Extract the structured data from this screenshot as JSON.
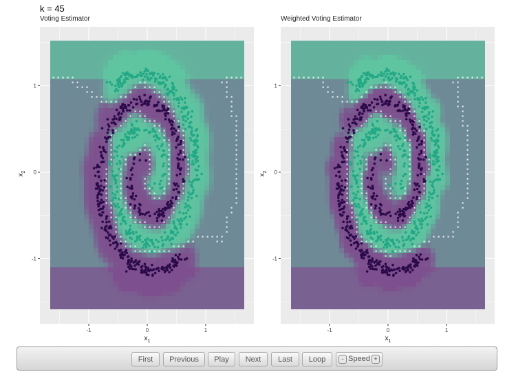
{
  "figure": {
    "title": "k = 45"
  },
  "colors": {
    "panel_bg": "#ebebeb",
    "grid": "#ffffff",
    "class0_point": "#2b0a4a",
    "class1_point": "#22a884",
    "region_class1": "#5fc4a0",
    "region_class0": "#7e4f8e",
    "boundary": "#ffffff"
  },
  "chart_data": [
    {
      "type": "scatter",
      "title": "Voting Estimator",
      "xlabel": "x1",
      "ylabel": "x2",
      "xlim": [
        -1.5,
        1.5
      ],
      "ylim": [
        -1.6,
        1.5
      ],
      "x_ticks": [
        -1,
        0,
        1
      ],
      "x_tick_labels": [
        "-1",
        "0",
        "1"
      ],
      "y_ticks": [
        -1,
        0,
        1
      ],
      "y_tick_labels": [
        "-1",
        "0",
        "1"
      ],
      "grid": true,
      "legend": "none",
      "series": [
        {
          "spiral_arm": "dark purple",
          "color": "#2b0a4a",
          "n_points": 450,
          "description": "spiral starting near (0.3, 0.2) turning outward to x~1.0"
        },
        {
          "spiral_arm": "teal",
          "color": "#22a884",
          "n_points": 450,
          "description": "interleaved spiral starting near (-0.3, -0.2) turning outward"
        }
      ],
      "background": "smoothed class-probability surface with white decision contour"
    },
    {
      "type": "scatter",
      "title": "Weighted Voting Estimator",
      "xlabel": "x1",
      "ylabel": "x2",
      "xlim": [
        -1.5,
        1.5
      ],
      "ylim": [
        -1.6,
        1.5
      ],
      "x_ticks": [
        -1,
        0,
        1
      ],
      "x_tick_labels": [
        "-1",
        "0",
        "1"
      ],
      "y_ticks": [
        -1,
        0,
        1
      ],
      "y_tick_labels": [
        "-1",
        "0",
        "1"
      ],
      "grid": true,
      "legend": "none",
      "series": [
        {
          "spiral_arm": "dark purple",
          "color": "#2b0a4a",
          "n_points": 450
        },
        {
          "spiral_arm": "teal",
          "color": "#22a884",
          "n_points": 450
        }
      ],
      "background": "sharper class-probability surface with white decision contour"
    }
  ],
  "controls": {
    "first": "First",
    "previous": "Previous",
    "play": "Play",
    "next": "Next",
    "last": "Last",
    "loop": "Loop",
    "speed_minus": "-",
    "speed_label": "Speed",
    "speed_plus": "+"
  }
}
